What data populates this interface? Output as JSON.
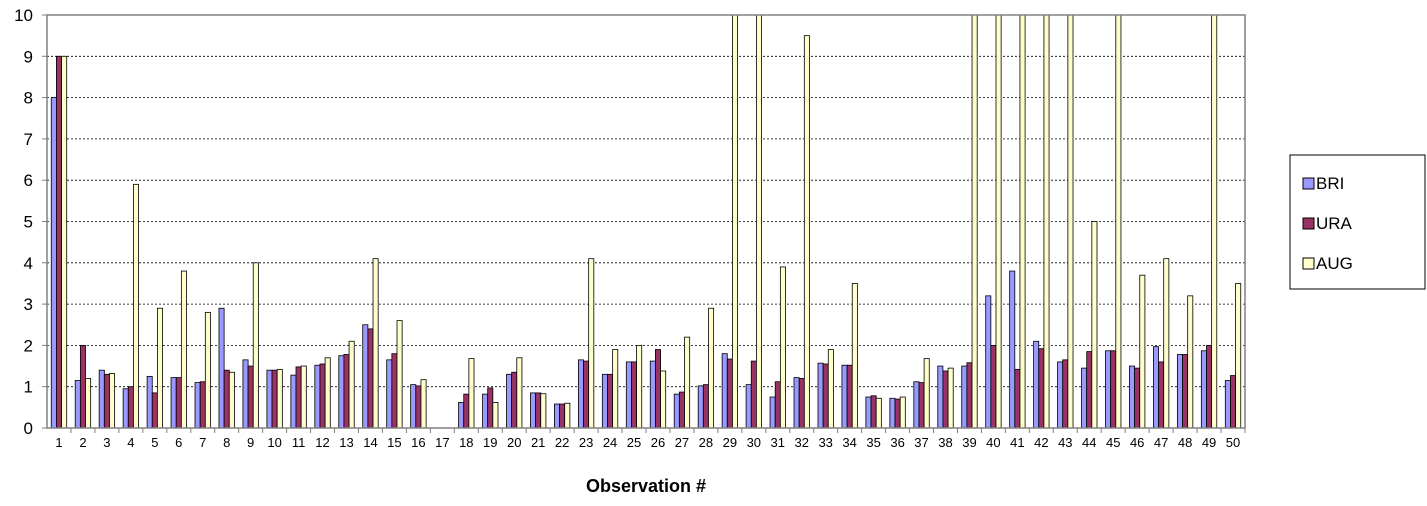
{
  "chart_data": {
    "type": "bar",
    "title": "",
    "xlabel": "Observation #",
    "ylabel": "",
    "ylim": [
      0,
      10
    ],
    "y_ticks": [
      "0",
      "1",
      "2",
      "3",
      "4",
      "5",
      "6",
      "7",
      "8",
      "9",
      "10"
    ],
    "grid": "horizontal",
    "legend_position": "right",
    "categories": [
      "1",
      "2",
      "3",
      "4",
      "5",
      "6",
      "7",
      "8",
      "9",
      "10",
      "11",
      "12",
      "13",
      "14",
      "15",
      "16",
      "17",
      "18",
      "19",
      "20",
      "21",
      "22",
      "23",
      "24",
      "25",
      "26",
      "27",
      "28",
      "29",
      "30",
      "31",
      "32",
      "33",
      "34",
      "35",
      "36",
      "37",
      "38",
      "39",
      "40",
      "41",
      "42",
      "43",
      "44",
      "45",
      "46",
      "47",
      "48",
      "49",
      "50"
    ],
    "series": [
      {
        "name": "BRI",
        "color": "#9999ff",
        "values": [
          8.0,
          1.15,
          1.4,
          0.95,
          1.25,
          1.22,
          1.1,
          2.9,
          1.65,
          1.4,
          1.28,
          1.52,
          1.75,
          2.5,
          1.65,
          1.05,
          0,
          0.62,
          0.82,
          1.3,
          0.85,
          0.58,
          1.65,
          1.3,
          1.6,
          1.62,
          0.82,
          1.02,
          1.8,
          1.05,
          0.75,
          1.22,
          1.57,
          1.52,
          0.75,
          0.72,
          1.12,
          1.5,
          1.5,
          3.2,
          3.8,
          2.1,
          1.6,
          1.45,
          1.87,
          1.5,
          1.97,
          1.78,
          1.87,
          1.15
        ]
      },
      {
        "name": "URA",
        "color": "#993366",
        "values": [
          9.0,
          2.0,
          1.3,
          1.0,
          0.85,
          1.22,
          1.12,
          1.4,
          1.5,
          1.4,
          1.48,
          1.55,
          1.78,
          2.4,
          1.8,
          1.02,
          0,
          0.82,
          0.97,
          1.35,
          0.85,
          0.58,
          1.62,
          1.3,
          1.6,
          1.9,
          0.87,
          1.05,
          1.67,
          1.62,
          1.12,
          1.2,
          1.55,
          1.52,
          0.78,
          0.7,
          1.1,
          1.38,
          1.58,
          2.0,
          1.42,
          1.92,
          1.65,
          1.85,
          1.87,
          1.45,
          1.6,
          1.78,
          2.0,
          1.27
        ]
      },
      {
        "name": "AUG",
        "color": "#ffffcc",
        "values": [
          9.0,
          1.2,
          1.32,
          5.9,
          2.9,
          3.8,
          2.8,
          1.35,
          4.0,
          1.42,
          1.5,
          1.7,
          2.1,
          4.1,
          2.6,
          1.17,
          0,
          1.68,
          0.62,
          1.7,
          0.83,
          0.6,
          4.1,
          1.9,
          2.0,
          1.38,
          2.2,
          2.9,
          10,
          10,
          3.9,
          9.5,
          1.9,
          3.5,
          0.72,
          0.75,
          1.68,
          1.45,
          10,
          10,
          10,
          10,
          10,
          5.0,
          10,
          3.7,
          4.1,
          3.2,
          10,
          3.5
        ]
      }
    ]
  }
}
